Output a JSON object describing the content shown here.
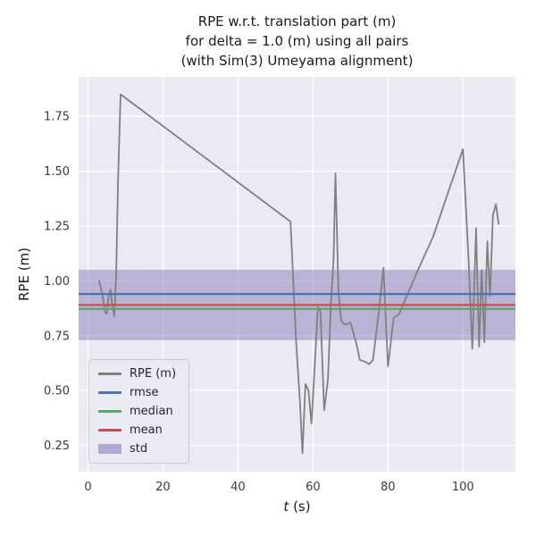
{
  "figure": {
    "title_lines": [
      "RPE w.r.t. translation part (m)",
      "for delta = 1.0 (m) using all pairs",
      "(with Sim(3) Umeyama alignment)"
    ]
  },
  "legend": {
    "position": "lower left",
    "items": [
      {
        "label": "RPE (m)",
        "type": "line",
        "color": "#808080"
      },
      {
        "label": "rmse",
        "type": "line",
        "color": "#4c72b0"
      },
      {
        "label": "median",
        "type": "line",
        "color": "#55a868"
      },
      {
        "label": "mean",
        "type": "line",
        "color": "#c44e52"
      },
      {
        "label": "std",
        "type": "patch",
        "color": "#8172b2"
      }
    ]
  },
  "chart_data": {
    "type": "line",
    "title": "RPE w.r.t. translation part (m) for delta = 1.0 (m) using all pairs (with Sim(3) Umeyama alignment)",
    "xlabel": "t (s)",
    "xlabel_var": "t",
    "xlabel_unit": " (s)",
    "ylabel": "RPE (m)",
    "xlim": [
      -2.5,
      114
    ],
    "ylim": [
      0.13,
      1.93
    ],
    "xticks": [
      0,
      20,
      40,
      60,
      80,
      100
    ],
    "yticks": [
      0.25,
      0.5,
      0.75,
      1.0,
      1.25,
      1.5,
      1.75
    ],
    "grid": true,
    "legend_position": "lower left",
    "series": [
      {
        "name": "RPE (m)",
        "x": [
          3,
          4,
          4.5,
          5,
          5.5,
          6,
          6.5,
          7,
          7.5,
          8,
          8.7,
          54,
          55.5,
          56.5,
          57.2,
          58,
          58.8,
          59.6,
          60.5,
          61.3,
          62,
          63,
          64,
          64.8,
          65.5,
          66,
          66.8,
          67.5,
          68.5,
          70,
          71.5,
          72.5,
          74,
          75,
          76,
          77.5,
          78.8,
          80,
          81.5,
          83,
          85,
          88,
          92,
          96,
          100,
          101.5,
          102.5,
          103.5,
          104.3,
          105,
          105.7,
          106.5,
          107.2,
          108,
          108.8,
          109.5
        ],
        "y": [
          1.0,
          0.92,
          0.86,
          0.85,
          0.93,
          0.96,
          0.88,
          0.84,
          1.02,
          1.45,
          1.85,
          1.27,
          0.72,
          0.46,
          0.215,
          0.53,
          0.5,
          0.35,
          0.62,
          0.88,
          0.86,
          0.41,
          0.55,
          0.9,
          1.1,
          1.49,
          0.95,
          0.82,
          0.8,
          0.81,
          0.72,
          0.64,
          0.63,
          0.62,
          0.64,
          0.85,
          1.06,
          0.61,
          0.83,
          0.85,
          0.93,
          1.05,
          1.2,
          1.4,
          1.6,
          1.1,
          0.69,
          1.24,
          0.7,
          1.05,
          0.72,
          1.18,
          0.93,
          1.3,
          1.35,
          1.26
        ]
      }
    ],
    "stats": {
      "rmse": 0.94,
      "mean": 0.89,
      "median": 0.872,
      "std": 0.16,
      "std_band": [
        0.73,
        1.05
      ]
    },
    "colors": {
      "axes_bg": "#eaeaf2",
      "grid": "#ffffff",
      "rpe": "#808080",
      "rmse": "#4c72b0",
      "median": "#55a868",
      "mean": "#c44e52",
      "std": "#8172b2",
      "tick_text": "#3a3a3a"
    }
  }
}
